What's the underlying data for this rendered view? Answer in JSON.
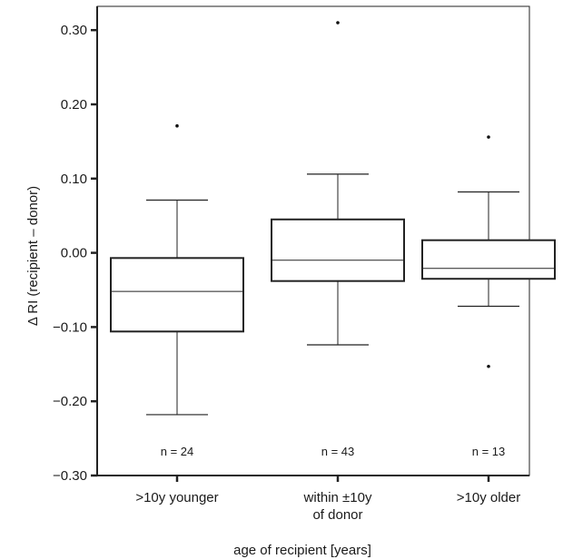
{
  "chart_data": {
    "type": "box",
    "xlabel": "age of recipient [years]",
    "ylabel": "Δ RI (recipient – donor)",
    "ylim": [
      -0.3,
      0.32
    ],
    "yticks": [
      -0.3,
      -0.2,
      -0.1,
      0.0,
      0.1,
      0.2,
      0.3
    ],
    "ytick_labels": [
      "−0.30",
      "−0.20",
      "−0.10",
      "0.00",
      "0.10",
      "0.20",
      "0.30"
    ],
    "grid": false,
    "categories": [
      {
        "label_lines": [
          ">10y younger"
        ],
        "n_label": "n = 24",
        "n": 24,
        "whisker_low": -0.218,
        "q1": -0.106,
        "median": -0.052,
        "q3": -0.007,
        "whisker_high": 0.071,
        "outliers": [
          0.171
        ]
      },
      {
        "label_lines": [
          "within ±10y",
          "of donor"
        ],
        "n_label": "n = 43",
        "n": 43,
        "whisker_low": -0.124,
        "q1": -0.038,
        "median": -0.01,
        "q3": 0.045,
        "whisker_high": 0.106,
        "outliers": [
          0.31
        ]
      },
      {
        "label_lines": [
          ">10y older"
        ],
        "n_label": "n = 13",
        "n": 13,
        "whisker_low": -0.072,
        "q1": -0.035,
        "median": -0.021,
        "q3": 0.017,
        "whisker_high": 0.082,
        "outliers": [
          0.156,
          -0.153
        ]
      }
    ]
  }
}
